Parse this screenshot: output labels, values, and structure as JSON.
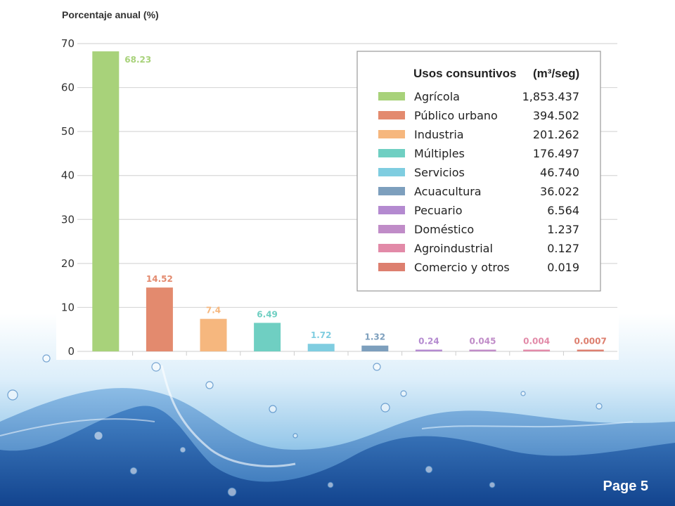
{
  "chart_data": {
    "type": "bar",
    "title": "",
    "ylabel": "Porcentaje anual (%)",
    "xlabel": "",
    "ylim": [
      0,
      70
    ],
    "yticks": [
      0,
      10,
      20,
      30,
      40,
      50,
      60,
      70
    ],
    "grid": true,
    "legend_position": "top-right",
    "legend": {
      "title": "Usos consuntivos",
      "unit": "(m³/seg)"
    },
    "categories": [
      "Agrícola",
      "Público urbano",
      "Industria",
      "Múltiples",
      "Servicios",
      "Acuacultura",
      "Pecuario",
      "Doméstico",
      "Agroindustrial",
      "Comercio y otros"
    ],
    "values": [
      68.23,
      14.52,
      7.4,
      6.49,
      1.72,
      1.32,
      0.24,
      0.045,
      0.004,
      0.0007
    ],
    "value_labels": [
      "68.23",
      "14.52",
      "7.4",
      "6.49",
      "1.72",
      "1.32",
      "0.24",
      "0.045",
      "0.004",
      "0.0007"
    ],
    "flows": [
      "1,853.437",
      "394.502",
      "201.262",
      "176.497",
      "46.740",
      "36.022",
      "6.564",
      "1.237",
      "0.127",
      "0.019"
    ],
    "colors": [
      "#a8d27a",
      "#e38a6e",
      "#f6b77e",
      "#6fcfc2",
      "#7fcde0",
      "#7d9fbd",
      "#b48ad0",
      "#c08cc8",
      "#e28aa8",
      "#dd7f6f"
    ]
  },
  "footer": {
    "page_label": "Page 5"
  }
}
